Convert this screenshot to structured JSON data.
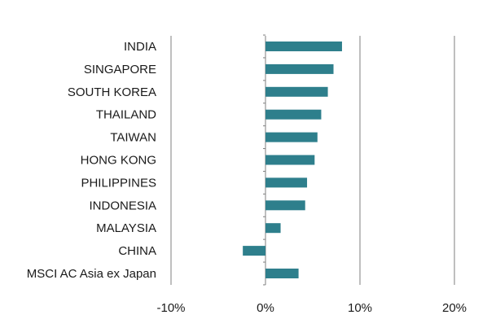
{
  "chart_data": {
    "type": "bar",
    "orientation": "horizontal",
    "categories": [
      "INDIA",
      "SINGAPORE",
      "SOUTH KOREA",
      "THAILAND",
      "TAIWAN",
      "HONG KONG",
      "PHILIPPINES",
      "INDONESIA",
      "MALAYSIA",
      "CHINA",
      "MSCI AC Asia ex Japan"
    ],
    "values": [
      8.1,
      7.2,
      6.6,
      5.9,
      5.5,
      5.2,
      4.4,
      4.2,
      1.6,
      -2.4,
      3.5
    ],
    "xlim": [
      -10,
      20
    ],
    "ticks": [
      -10,
      0,
      10,
      20
    ],
    "tick_labels": [
      "-10%",
      "0%",
      "10%",
      "20%"
    ],
    "grid": "vertical",
    "bar_color": "#2e7f8c",
    "title": "",
    "xlabel": "",
    "ylabel": ""
  }
}
